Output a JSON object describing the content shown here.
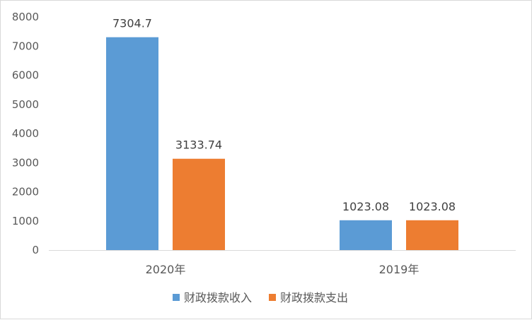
{
  "chart_data": {
    "type": "bar",
    "title": "",
    "xlabel": "",
    "ylabel": "",
    "categories": [
      "2020年",
      "2019年"
    ],
    "series": [
      {
        "name": "财政拨款收入",
        "values": [
          7304.7,
          1023.08
        ],
        "labels": [
          "7304.7",
          "1023.08"
        ],
        "color": "#5B9BD5"
      },
      {
        "name": "财政拨款支出",
        "values": [
          3133.74,
          1023.08
        ],
        "labels": [
          "3133.74",
          "1023.08"
        ],
        "color": "#ED7D31"
      }
    ],
    "ylim": [
      0,
      8000
    ],
    "yticks": [
      0,
      1000,
      2000,
      3000,
      4000,
      5000,
      6000,
      7000,
      8000
    ],
    "grid": false,
    "legend_position": "bottom"
  }
}
